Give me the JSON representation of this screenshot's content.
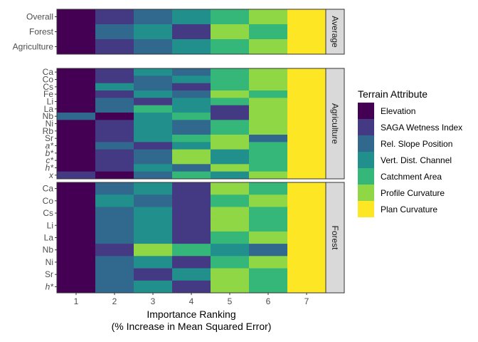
{
  "palette": {
    "Elevation": "#440154",
    "SAGA Wetness Index": "#443A83",
    "Rel. Slope Position": "#31688E",
    "Vert. Dist. Channel": "#21908C",
    "Catchment Area": "#35B779",
    "Profile Curvature": "#8FD744",
    "Plan Curvature": "#FDE725"
  },
  "chart_data": {
    "type": "heatmap",
    "xlabel": "Importance Ranking",
    "xlabel2": "(% Increase in Mean Squared Error)",
    "x": [
      "1",
      "2",
      "3",
      "4",
      "5",
      "6",
      "7"
    ],
    "legend": {
      "title": "Terrain Attribute",
      "position": "right",
      "items": [
        "Elevation",
        "SAGA Wetness Index",
        "Rel. Slope Position",
        "Vert. Dist. Channel",
        "Catchment Area",
        "Profile Curvature",
        "Plan Curvature"
      ]
    },
    "facets": [
      {
        "strip": "Average",
        "rows": [
          {
            "label": "Overall",
            "italic": false,
            "cells": [
              "Elevation",
              "SAGA Wetness Index",
              "Rel. Slope Position",
              "Vert. Dist. Channel",
              "Catchment Area",
              "Profile Curvature",
              "Plan Curvature"
            ]
          },
          {
            "label": "Forest",
            "italic": false,
            "cells": [
              "Elevation",
              "Rel. Slope Position",
              "Vert. Dist. Channel",
              "SAGA Wetness Index",
              "Profile Curvature",
              "Catchment Area",
              "Plan Curvature"
            ]
          },
          {
            "label": "Agriculture",
            "italic": false,
            "cells": [
              "Elevation",
              "SAGA Wetness Index",
              "Rel. Slope Position",
              "Vert. Dist. Channel",
              "Catchment Area",
              "Profile Curvature",
              "Plan Curvature"
            ]
          }
        ]
      },
      {
        "strip": "Agriculture",
        "rows": [
          {
            "label": "Ca",
            "italic": false,
            "cells": [
              "Elevation",
              "SAGA Wetness Index",
              "Vert. Dist. Channel",
              "Rel. Slope Position",
              "Catchment Area",
              "Profile Curvature",
              "Plan Curvature"
            ]
          },
          {
            "label": "Co",
            "italic": false,
            "cells": [
              "Elevation",
              "SAGA Wetness Index",
              "Rel. Slope Position",
              "Vert. Dist. Channel",
              "Catchment Area",
              "Profile Curvature",
              "Plan Curvature"
            ]
          },
          {
            "label": "Cs",
            "italic": false,
            "cells": [
              "Elevation",
              "Vert. Dist. Channel",
              "Rel. Slope Position",
              "SAGA Wetness Index",
              "Catchment Area",
              "Profile Curvature",
              "Plan Curvature"
            ]
          },
          {
            "label": "Fe",
            "italic": false,
            "cells": [
              "Elevation",
              "SAGA Wetness Index",
              "Vert. Dist. Channel",
              "Rel. Slope Position",
              "Profile Curvature",
              "Catchment Area",
              "Plan Curvature"
            ]
          },
          {
            "label": "Li",
            "italic": false,
            "cells": [
              "Elevation",
              "Rel. Slope Position",
              "SAGA Wetness Index",
              "Vert. Dist. Channel",
              "Catchment Area",
              "Profile Curvature",
              "Plan Curvature"
            ]
          },
          {
            "label": "La",
            "italic": false,
            "cells": [
              "Elevation",
              "Rel. Slope Position",
              "Catchment Area",
              "Vert. Dist. Channel",
              "SAGA Wetness Index",
              "Profile Curvature",
              "Plan Curvature"
            ]
          },
          {
            "label": "Nb",
            "italic": false,
            "cells": [
              "Rel. Slope Position",
              "Elevation",
              "Vert. Dist. Channel",
              "Catchment Area",
              "SAGA Wetness Index",
              "Profile Curvature",
              "Plan Curvature"
            ]
          },
          {
            "label": "Ni",
            "italic": false,
            "cells": [
              "Elevation",
              "SAGA Wetness Index",
              "Vert. Dist. Channel",
              "Rel. Slope Position",
              "Catchment Area",
              "Profile Curvature",
              "Plan Curvature"
            ]
          },
          {
            "label": "Rb",
            "italic": false,
            "cells": [
              "Elevation",
              "SAGA Wetness Index",
              "Vert. Dist. Channel",
              "Rel. Slope Position",
              "Catchment Area",
              "Profile Curvature",
              "Plan Curvature"
            ]
          },
          {
            "label": "Sr",
            "italic": false,
            "cells": [
              "Elevation",
              "SAGA Wetness Index",
              "Vert. Dist. Channel",
              "Catchment Area",
              "Profile Curvature",
              "Rel. Slope Position",
              "Plan Curvature"
            ]
          },
          {
            "label": "a*",
            "italic": true,
            "cells": [
              "Elevation",
              "Rel. Slope Position",
              "SAGA Wetness Index",
              "Vert. Dist. Channel",
              "Profile Curvature",
              "Catchment Area",
              "Plan Curvature"
            ]
          },
          {
            "label": "b*",
            "italic": true,
            "cells": [
              "Elevation",
              "SAGA Wetness Index",
              "Rel. Slope Position",
              "Profile Curvature",
              "Vert. Dist. Channel",
              "Catchment Area",
              "Plan Curvature"
            ]
          },
          {
            "label": "c*",
            "italic": true,
            "cells": [
              "Elevation",
              "SAGA Wetness Index",
              "Rel. Slope Position",
              "Profile Curvature",
              "Vert. Dist. Channel",
              "Catchment Area",
              "Plan Curvature"
            ]
          },
          {
            "label": "h*",
            "italic": true,
            "cells": [
              "Elevation",
              "SAGA Wetness Index",
              "Vert. Dist. Channel",
              "Rel. Slope Position",
              "Profile Curvature",
              "Catchment Area",
              "Plan Curvature"
            ]
          },
          {
            "label": "x",
            "italic": true,
            "cells": [
              "SAGA Wetness Index",
              "Elevation",
              "Rel. Slope Position",
              "Catchment Area",
              "Vert. Dist. Channel",
              "Profile Curvature",
              "Plan Curvature"
            ]
          }
        ]
      },
      {
        "strip": "Forest",
        "rows": [
          {
            "label": "Ca",
            "italic": false,
            "cells": [
              "Elevation",
              "Rel. Slope Position",
              "Vert. Dist. Channel",
              "SAGA Wetness Index",
              "Profile Curvature",
              "Catchment Area",
              "Plan Curvature"
            ]
          },
          {
            "label": "Co",
            "italic": false,
            "cells": [
              "Elevation",
              "Vert. Dist. Channel",
              "Rel. Slope Position",
              "SAGA Wetness Index",
              "Catchment Area",
              "Profile Curvature",
              "Plan Curvature"
            ]
          },
          {
            "label": "Cs",
            "italic": false,
            "cells": [
              "Elevation",
              "Rel. Slope Position",
              "Vert. Dist. Channel",
              "SAGA Wetness Index",
              "Profile Curvature",
              "Catchment Area",
              "Plan Curvature"
            ]
          },
          {
            "label": "Li",
            "italic": false,
            "cells": [
              "Elevation",
              "Rel. Slope Position",
              "Vert. Dist. Channel",
              "SAGA Wetness Index",
              "Profile Curvature",
              "Catchment Area",
              "Plan Curvature"
            ]
          },
          {
            "label": "La",
            "italic": false,
            "cells": [
              "Elevation",
              "Rel. Slope Position",
              "Vert. Dist. Channel",
              "SAGA Wetness Index",
              "Catchment Area",
              "Profile Curvature",
              "Plan Curvature"
            ]
          },
          {
            "label": "Nb",
            "italic": false,
            "cells": [
              "Elevation",
              "SAGA Wetness Index",
              "Profile Curvature",
              "Catchment Area",
              "Vert. Dist. Channel",
              "Rel. Slope Position",
              "Plan Curvature"
            ]
          },
          {
            "label": "Ni",
            "italic": false,
            "cells": [
              "Elevation",
              "Rel. Slope Position",
              "Vert. Dist. Channel",
              "SAGA Wetness Index",
              "Catchment Area",
              "Profile Curvature",
              "Plan Curvature"
            ]
          },
          {
            "label": "Sr",
            "italic": false,
            "cells": [
              "Elevation",
              "Rel. Slope Position",
              "SAGA Wetness Index",
              "Vert. Dist. Channel",
              "Profile Curvature",
              "Catchment Area",
              "Plan Curvature"
            ]
          },
          {
            "label": "h*",
            "italic": true,
            "cells": [
              "Elevation",
              "Rel. Slope Position",
              "Vert. Dist. Channel",
              "SAGA Wetness Index",
              "Profile Curvature",
              "Catchment Area",
              "Plan Curvature"
            ]
          }
        ]
      }
    ]
  }
}
